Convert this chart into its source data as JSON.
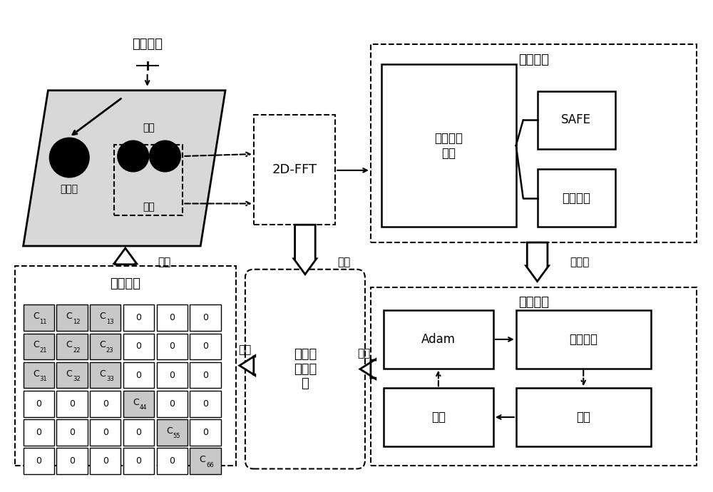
{
  "bg_color": "#ffffff",
  "plate_color": "#d8d8d8",
  "gray_cell": "#c8c8c8",
  "matrix_data": [
    [
      "C11",
      "C12",
      "C13",
      "0",
      "0",
      "0"
    ],
    [
      "C21",
      "C22",
      "C23",
      "0",
      "0",
      "0"
    ],
    [
      "C31",
      "C32",
      "C33",
      "0",
      "0",
      "0"
    ],
    [
      "0",
      "0",
      "0",
      "C44",
      "0",
      "0"
    ],
    [
      "0",
      "0",
      "0",
      "0",
      "C55",
      "0"
    ],
    [
      "0",
      "0",
      "0",
      "0",
      "0",
      "C66"
    ]
  ],
  "matrix_subs": {
    "C11": [
      "C",
      "11"
    ],
    "C12": [
      "C",
      "12"
    ],
    "C13": [
      "C",
      "13"
    ],
    "C21": [
      "C",
      "21"
    ],
    "C22": [
      "C",
      "22"
    ],
    "C23": [
      "C",
      "23"
    ],
    "C31": [
      "C",
      "31"
    ],
    "C32": [
      "C",
      "32"
    ],
    "C33": [
      "C",
      "33"
    ],
    "C44": [
      "C",
      "44"
    ],
    "C55": [
      "C",
      "55"
    ],
    "C66": [
      "C",
      "66"
    ]
  }
}
